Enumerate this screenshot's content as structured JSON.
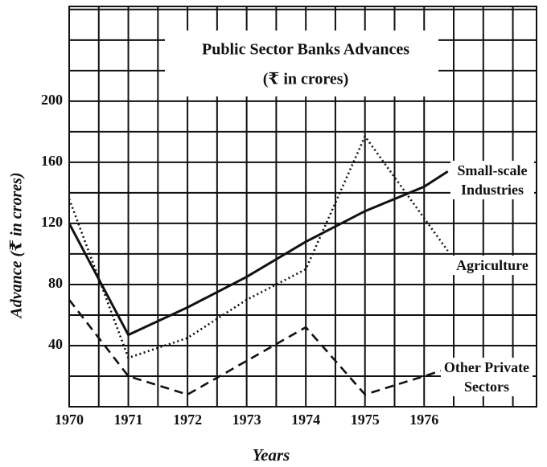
{
  "chart_data": {
    "type": "line",
    "title": "Public Sector Banks Advances",
    "subtitle": "(₹ in crores)",
    "x_label": "Years",
    "y_label": "Advance (₹ in crores)",
    "xlim": [
      1970,
      1977.9
    ],
    "xticks": [
      1970,
      1971,
      1972,
      1973,
      1974,
      1975,
      1976
    ],
    "x_minor_ticks": [
      1970.5,
      1971.5,
      1972.5,
      1973.5,
      1974.5,
      1975.5,
      1976.5,
      1977,
      1977.5
    ],
    "ylim": [
      0,
      262
    ],
    "yticks": [
      40,
      80,
      120,
      160,
      200
    ],
    "y_minor_ticks": [
      0,
      20,
      60,
      100,
      140,
      180,
      220,
      240,
      260
    ],
    "grid": true,
    "series": [
      {
        "name": "Small-scale Industries",
        "color": "#111111",
        "line_style": "solid",
        "x": [
          1970,
          1971,
          1972,
          1973,
          1974,
          1975,
          1976,
          1976.4
        ],
        "values": [
          120,
          47,
          65,
          85,
          108,
          128,
          144,
          154
        ]
      },
      {
        "name": "Agriculture",
        "color": "#111111",
        "line_style": "dotted",
        "x": [
          1970,
          1971,
          1972,
          1973,
          1974,
          1975,
          1976.4
        ],
        "values": [
          136,
          32,
          45,
          70,
          90,
          177,
          102
        ]
      },
      {
        "name": "Other Private Sectors",
        "color": "#111111",
        "line_style": "dashed",
        "x": [
          1970,
          1971,
          1972,
          1974,
          1975,
          1976,
          1976.4
        ],
        "values": [
          70,
          20,
          8,
          52,
          8,
          20,
          25
        ]
      }
    ]
  }
}
